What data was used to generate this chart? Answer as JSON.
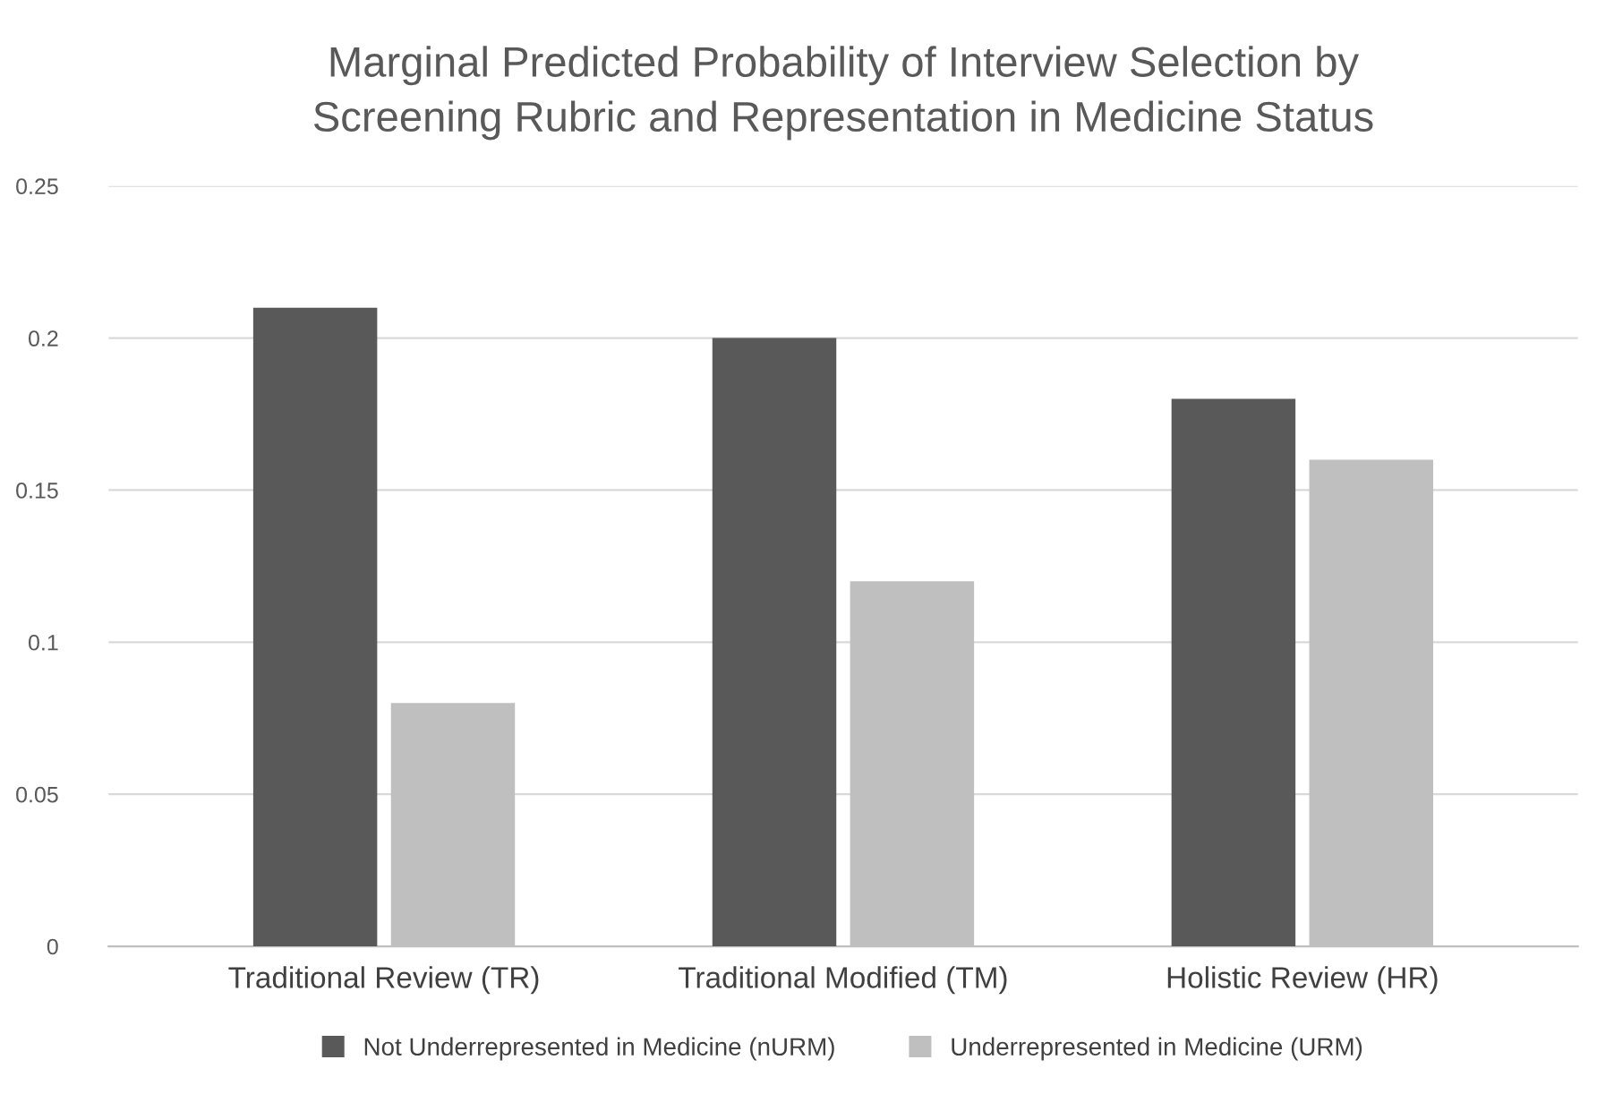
{
  "chart_data": {
    "type": "bar",
    "title": "Marginal Predicted Probability of Interview Selection by\nScreening Rubric and Representation in Medicine Status",
    "categories": [
      "Traditional Review (TR)",
      "Traditional Modified (TM)",
      "Holistic Review (HR)"
    ],
    "series": [
      {
        "name": "Not Underrepresented in Medicine (nURM)",
        "color": "#595959",
        "values": [
          0.21,
          0.2,
          0.18
        ]
      },
      {
        "name": "Underrepresented in Medicine (URM)",
        "color": "#bfbfbf",
        "values": [
          0.08,
          0.12,
          0.16
        ]
      }
    ],
    "ylim": [
      0,
      0.25
    ],
    "yticks": [
      0,
      0.05,
      0.1,
      0.15,
      0.2,
      0.25
    ],
    "grid": "y",
    "legend": "bottom"
  }
}
